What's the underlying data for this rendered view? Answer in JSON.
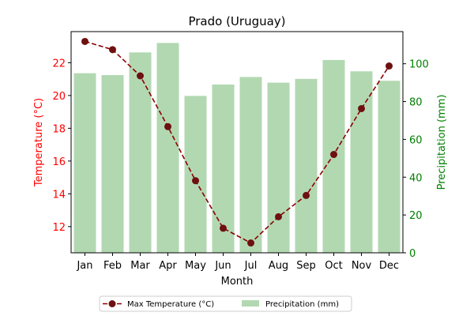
{
  "chart_data": {
    "type": "bar",
    "title": "Prado (Uruguay)",
    "xlabel": "Month",
    "categories": [
      "Jan",
      "Feb",
      "Mar",
      "Apr",
      "May",
      "Jun",
      "Jul",
      "Aug",
      "Sep",
      "Oct",
      "Nov",
      "Dec"
    ],
    "series": [
      {
        "name": "Max Temperature (°C)",
        "type": "line",
        "axis": "left",
        "values": [
          23.3,
          22.8,
          21.2,
          18.1,
          14.8,
          11.9,
          11.0,
          12.6,
          13.9,
          16.4,
          19.2,
          21.8
        ],
        "color": "#8b0000"
      },
      {
        "name": "Precipitation (mm)",
        "type": "bar",
        "axis": "right",
        "values": [
          95,
          94,
          106,
          111,
          83,
          89,
          93,
          90,
          92,
          102,
          96,
          91
        ],
        "color": "#b2d8b2"
      }
    ],
    "y_left": {
      "label": "Temperature (°C)",
      "range": [
        10.4,
        23.9
      ],
      "ticks": [
        12,
        14,
        16,
        18,
        20,
        22
      ],
      "color": "#ff0000"
    },
    "y_right": {
      "label": "Precipitation (mm)",
      "range": [
        0,
        117
      ],
      "ticks": [
        0,
        20,
        40,
        60,
        80,
        100
      ],
      "color": "#008000"
    },
    "grid": false,
    "legend": "below"
  }
}
